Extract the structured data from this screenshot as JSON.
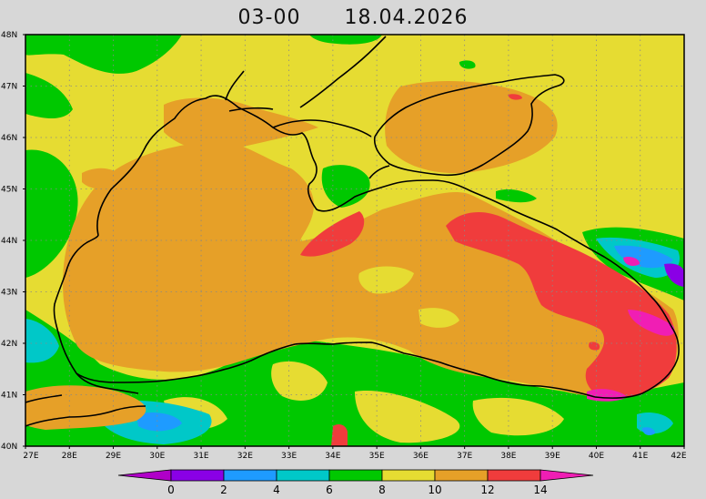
{
  "title": {
    "time": "03-00",
    "date": "18.04.2026"
  },
  "axes": {
    "lat_labels": [
      "48N",
      "47N",
      "46N",
      "45N",
      "44N",
      "43N",
      "42N",
      "41N",
      "40N"
    ],
    "lon_labels": [
      "27E",
      "28E",
      "29E",
      "30E",
      "31E",
      "32E",
      "33E",
      "34E",
      "35E",
      "36E",
      "37E",
      "38E",
      "39E",
      "40E",
      "41E",
      "42E"
    ]
  },
  "colorbar": {
    "labels": [
      "0",
      "2",
      "4",
      "6",
      "8",
      "10",
      "12",
      "14"
    ],
    "colors": [
      "#b000c8",
      "#8a00e6",
      "#1e9bff",
      "#00c8c8",
      "#00c800",
      "#e6dc32",
      "#e6a028",
      "#f03c3c",
      "#f01eb4"
    ]
  },
  "palette": {
    "green": "#00c800",
    "yellow": "#e6dc32",
    "orange": "#e6a028",
    "red": "#f03c3c",
    "magenta": "#f01eb4",
    "cyan": "#00c8c8",
    "blue": "#1e9bff",
    "purple": "#8a00e6",
    "coast": "#000000",
    "grid": "#999999"
  }
}
